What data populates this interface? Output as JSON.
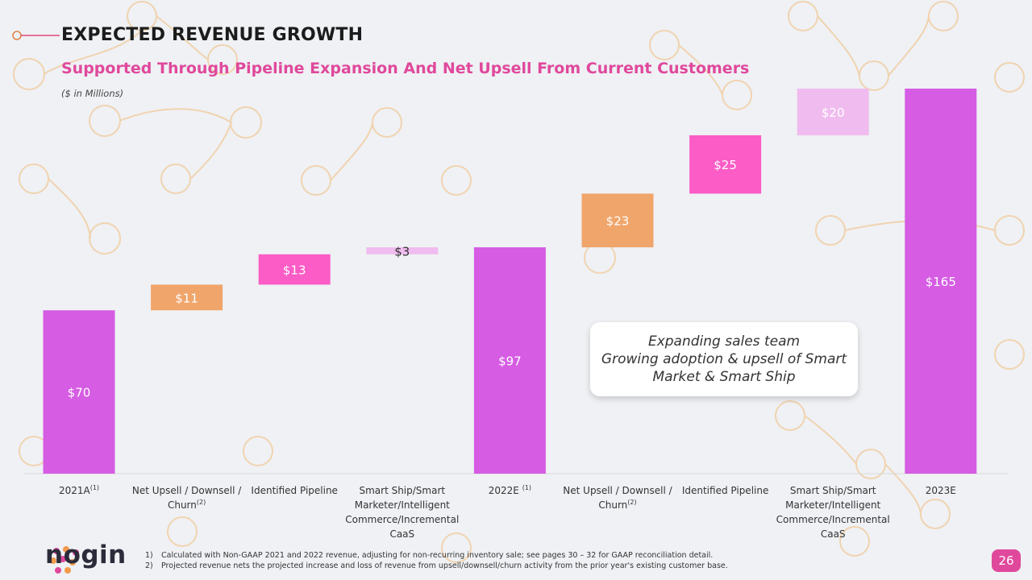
{
  "header": {
    "title": "EXPECTED REVENUE GROWTH",
    "subtitle": "Supported Through Pipeline Expansion And Net Upsell From Current Customers",
    "unit_note": "($ in Millions)"
  },
  "callout": {
    "line1": "Expanding sales team",
    "line2": "Growing adoption & upsell of Smart",
    "line3": "Market & Smart Ship"
  },
  "chart_data": {
    "type": "bar",
    "subtype": "waterfall",
    "title": "Expected Revenue Growth",
    "ylabel": "($ in Millions)",
    "ylim": [
      0,
      165
    ],
    "grid": false,
    "categories": [
      "2021A",
      "Net Upsell / Downsell / Churn",
      "Identified Pipeline",
      "Smart Ship/Smart Marketer/Intelligent Commerce/Incremental CaaS",
      "2022E",
      "Net Upsell / Downsell / Churn",
      "Identified Pipeline",
      "Smart Ship/Smart Marketer/Intelligent Commerce/Incremental CaaS",
      "2023E"
    ],
    "category_lines": [
      [
        "2021A"
      ],
      [
        "Net Upsell / Downsell /",
        "Churn"
      ],
      [
        "Identified Pipeline"
      ],
      [
        "Smart Ship/Smart",
        "Marketer/Intelligent",
        "Commerce/Incremental",
        "CaaS"
      ],
      [
        "2022E "
      ],
      [
        "Net Upsell / Downsell /",
        "Churn"
      ],
      [
        "Identified Pipeline"
      ],
      [
        "Smart Ship/Smart",
        "Marketer/Intelligent",
        "Commerce/Incremental",
        "CaaS"
      ],
      [
        "2023E"
      ]
    ],
    "superscripts": [
      "(1)",
      "(2)",
      "",
      "",
      "(1)",
      "(2)",
      "",
      "",
      ""
    ],
    "values": [
      70,
      11,
      13,
      3,
      97,
      23,
      25,
      20,
      165
    ],
    "bases": [
      0,
      70,
      81,
      94,
      0,
      97,
      120,
      145,
      0
    ],
    "labels": [
      "$70",
      "$11",
      "$13",
      "$3",
      "$97",
      "$23",
      "$25",
      "$20",
      "$165"
    ],
    "kinds": [
      "total",
      "delta",
      "delta",
      "delta",
      "total",
      "delta",
      "delta",
      "delta",
      "total"
    ],
    "colors": [
      "#d55ce3",
      "#f0a56b",
      "#fb5cc6",
      "#f0bcef",
      "#d55ce3",
      "#f0a56b",
      "#fb5cc6",
      "#f0bcef",
      "#d55ce3"
    ],
    "label_colors": [
      "#ffffff",
      "#ffffff",
      "#ffffff",
      "#333333",
      "#ffffff",
      "#ffffff",
      "#ffffff",
      "#ffffff",
      "#ffffff"
    ]
  },
  "footnotes": [
    {
      "num": "1)",
      "text": "Calculated with Non-GAAP 2021 and 2022 revenue, adjusting for non-recurring inventory sale; see pages 30 – 32 for GAAP reconciliation detail."
    },
    {
      "num": "2)",
      "text": "Projected revenue nets the projected increase and loss of revenue from upsell/downsell/churn activity from the prior year's existing customer base."
    }
  ],
  "brand": {
    "logo_text": "nogin",
    "accent": "#e0489c",
    "header_line": "#e04c7a"
  },
  "page_number": "26"
}
